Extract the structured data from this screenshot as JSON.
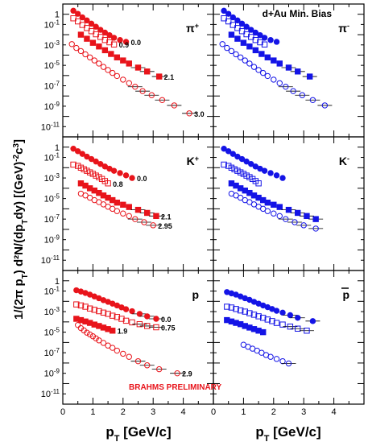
{
  "chart_data": {
    "type": "scatter",
    "title": "d+Au Min. Bias",
    "xlabel": "p_T [GeV/c]",
    "ylabel": "1/(2π p_T) d²N/(dp_T dy) [(GeV)^-2 c^3]",
    "yscale": "log",
    "xlim": [
      0,
      5
    ],
    "ylim": [
      1e-12,
      10
    ],
    "x_ticks": [
      "0",
      "1",
      "2",
      "3",
      "4"
    ],
    "y_ticks": [
      "1",
      "10^-1",
      "10^-3",
      "10^-5",
      "10^-7",
      "10^-9",
      "10^-11"
    ],
    "annotation": "BRAHMS PRELIMINARY",
    "colors": {
      "positive": "#e8141b",
      "negative": "#1414e6"
    },
    "marker_legend": {
      "filled_circle": "y=0.0",
      "open_square": "y=0.8/0.9/0.75",
      "filled_square": "y=1.9/2.1",
      "open_circle": "y=2.9/2.95/3.0"
    },
    "panels": [
      {
        "id": "pi_plus",
        "particle": "π",
        "charge": "+",
        "color": "#e8141b",
        "series": [
          {
            "name": "0.0",
            "marker": "filled_circle",
            "x": [
              0.35,
              0.5,
              0.65,
              0.8,
              0.95,
              1.1,
              1.25,
              1.4,
              1.55,
              1.7,
              1.9,
              2.1
            ],
            "y": [
              2.2,
              1.1,
              0.5,
              0.25,
              0.12,
              0.06,
              0.03,
              0.016,
              0.009,
              0.005,
              0.003,
              0.002
            ]
          },
          {
            "name": "0.9",
            "marker": "open_square",
            "x": [
              0.35,
              0.5,
              0.65,
              0.8,
              0.95,
              1.1,
              1.25,
              1.4,
              1.55,
              1.7
            ],
            "y": [
              0.4,
              0.2,
              0.09,
              0.045,
              0.022,
              0.011,
              0.006,
              0.003,
              0.0018,
              0.0011
            ]
          },
          {
            "name": "2.1",
            "marker": "filled_square",
            "x": [
              0.6,
              0.8,
              1.0,
              1.2,
              1.4,
              1.6,
              1.8,
              2.0,
              2.2,
              2.5,
              2.8,
              3.2
            ],
            "y": [
              0.01,
              0.004,
              0.0016,
              0.0007,
              0.0003,
              0.00013,
              6e-05,
              3e-05,
              1.5e-05,
              6e-06,
              2.5e-06,
              8e-07
            ]
          },
          {
            "name": "3.0",
            "marker": "open_circle",
            "x": [
              0.3,
              0.45,
              0.6,
              0.75,
              0.9,
              1.05,
              1.2,
              1.35,
              1.5,
              1.65,
              1.8,
              2.0,
              2.2,
              2.4,
              2.65,
              2.95,
              3.3,
              3.7,
              4.2
            ],
            "y": [
              0.0012,
              0.0005,
              0.00025,
              0.00012,
              6e-05,
              3e-05,
              1.5e-05,
              7e-06,
              3.5e-06,
              1.8e-06,
              9e-07,
              4e-07,
              1.8e-07,
              8e-08,
              3e-08,
              1.2e-08,
              4e-09,
              1.2e-09,
              2e-10
            ]
          }
        ],
        "labels": [
          "0.0",
          "0.9",
          "2.1",
          "3.0"
        ]
      },
      {
        "id": "pi_minus",
        "particle": "π",
        "charge": "-",
        "color": "#1414e6",
        "series": [
          {
            "name": "0.0",
            "marker": "filled_circle",
            "x": [
              0.35,
              0.5,
              0.65,
              0.8,
              0.95,
              1.1,
              1.25,
              1.4,
              1.55,
              1.7,
              1.9,
              2.1
            ],
            "y": [
              2.2,
              1.1,
              0.5,
              0.25,
              0.12,
              0.06,
              0.03,
              0.016,
              0.009,
              0.005,
              0.003,
              0.002
            ]
          },
          {
            "name": "0.9",
            "marker": "open_square",
            "x": [
              0.35,
              0.5,
              0.65,
              0.8,
              0.95,
              1.1,
              1.25,
              1.4,
              1.55,
              1.7
            ],
            "y": [
              0.4,
              0.2,
              0.09,
              0.045,
              0.022,
              0.011,
              0.006,
              0.003,
              0.0018,
              0.0011
            ]
          },
          {
            "name": "2.1",
            "marker": "filled_square",
            "x": [
              0.6,
              0.8,
              1.0,
              1.2,
              1.4,
              1.6,
              1.8,
              2.0,
              2.2,
              2.5,
              2.8,
              3.2
            ],
            "y": [
              0.01,
              0.004,
              0.0016,
              0.0007,
              0.0003,
              0.00013,
              6e-05,
              3e-05,
              1.5e-05,
              6e-06,
              2.5e-06,
              8e-07
            ]
          },
          {
            "name": "3.0",
            "marker": "open_circle",
            "x": [
              0.3,
              0.45,
              0.6,
              0.75,
              0.9,
              1.05,
              1.2,
              1.35,
              1.5,
              1.65,
              1.8,
              2.0,
              2.2,
              2.4,
              2.65,
              2.95,
              3.3,
              3.7
            ],
            "y": [
              0.0012,
              0.0005,
              0.00025,
              0.00012,
              6e-05,
              3e-05,
              1.5e-05,
              7e-06,
              3.5e-06,
              1.8e-06,
              9e-07,
              4e-07,
              1.8e-07,
              8e-08,
              3e-08,
              1.2e-08,
              4e-09,
              1.2e-09
            ]
          }
        ],
        "labels": []
      },
      {
        "id": "k_plus",
        "particle": "K",
        "charge": "+",
        "color": "#e8141b",
        "series": [
          {
            "name": "0.0",
            "marker": "filled_circle",
            "x": [
              0.35,
              0.5,
              0.65,
              0.8,
              0.95,
              1.1,
              1.25,
              1.4,
              1.55,
              1.7,
              1.9,
              2.1,
              2.3
            ],
            "y": [
              0.7,
              0.4,
              0.22,
              0.12,
              0.07,
              0.04,
              0.023,
              0.013,
              0.008,
              0.005,
              0.003,
              0.0018,
              0.001
            ]
          },
          {
            "name": "0.8",
            "marker": "open_square",
            "x": [
              0.35,
              0.5,
              0.6,
              0.7,
              0.8,
              0.9,
              1.0,
              1.1,
              1.2,
              1.3,
              1.4,
              1.5
            ],
            "y": [
              0.02,
              0.015,
              0.01,
              0.007,
              0.005,
              0.0035,
              0.0025,
              0.0017,
              0.0012,
              0.0008,
              0.0005,
              0.0003
            ]
          },
          {
            "name": "2.1",
            "marker": "filled_square",
            "x": [
              0.6,
              0.75,
              0.9,
              1.05,
              1.2,
              1.35,
              1.5,
              1.65,
              1.8,
              2.0,
              2.2,
              2.5,
              2.8,
              3.1
            ],
            "y": [
              0.0003,
              0.00018,
              0.0001,
              6e-05,
              3.5e-05,
              2e-05,
              1.2e-05,
              7e-06,
              4e-06,
              2.5e-06,
              1.5e-06,
              8e-07,
              4e-07,
              2e-07
            ]
          },
          {
            "name": "2.95",
            "marker": "open_circle",
            "x": [
              0.6,
              0.75,
              0.9,
              1.05,
              1.2,
              1.35,
              1.5,
              1.65,
              1.8,
              2.0,
              2.2,
              2.4,
              2.7,
              3.0
            ],
            "y": [
              3e-05,
              2e-05,
              1.2e-05,
              7e-06,
              4.5e-06,
              2.7e-06,
              1.6e-06,
              1e-06,
              6e-07,
              3.5e-07,
              2e-07,
              1e-07,
              5e-08,
              2.5e-08
            ]
          }
        ],
        "labels": [
          "0.0",
          "0.8",
          "2.1",
          "2.95"
        ]
      },
      {
        "id": "k_minus",
        "particle": "K",
        "charge": "-",
        "color": "#1414e6",
        "series": [
          {
            "name": "0.0",
            "marker": "filled_circle",
            "x": [
              0.35,
              0.5,
              0.65,
              0.8,
              0.95,
              1.1,
              1.25,
              1.4,
              1.55,
              1.7,
              1.9,
              2.1,
              2.3
            ],
            "y": [
              0.7,
              0.4,
              0.22,
              0.12,
              0.07,
              0.04,
              0.023,
              0.013,
              0.008,
              0.005,
              0.003,
              0.0018,
              0.001
            ]
          },
          {
            "name": "0.8",
            "marker": "open_square",
            "x": [
              0.35,
              0.5,
              0.6,
              0.7,
              0.8,
              0.9,
              1.0,
              1.1,
              1.2,
              1.3,
              1.4,
              1.5
            ],
            "y": [
              0.02,
              0.015,
              0.01,
              0.007,
              0.005,
              0.0035,
              0.0025,
              0.0017,
              0.0012,
              0.0008,
              0.0005,
              0.0003
            ]
          },
          {
            "name": "2.1",
            "marker": "filled_square",
            "x": [
              0.6,
              0.75,
              0.9,
              1.05,
              1.2,
              1.35,
              1.5,
              1.65,
              1.8,
              2.0,
              2.2,
              2.5,
              2.8,
              3.1,
              3.4
            ],
            "y": [
              0.0003,
              0.00018,
              0.0001,
              6e-05,
              3.5e-05,
              2e-05,
              1.2e-05,
              7e-06,
              4e-06,
              2.5e-06,
              1.5e-06,
              8e-07,
              4e-07,
              2e-07,
              1e-07
            ]
          },
          {
            "name": "2.95",
            "marker": "open_circle",
            "x": [
              0.6,
              0.75,
              0.9,
              1.05,
              1.2,
              1.35,
              1.5,
              1.65,
              1.8,
              2.0,
              2.2,
              2.4,
              2.7,
              3.0,
              3.4
            ],
            "y": [
              3e-05,
              2e-05,
              1.2e-05,
              7e-06,
              4.5e-06,
              2.7e-06,
              1.6e-06,
              1e-06,
              6e-07,
              3.5e-07,
              2e-07,
              1e-07,
              5e-08,
              2.5e-08,
              1.2e-08
            ]
          }
        ],
        "labels": []
      },
      {
        "id": "p",
        "particle": "p",
        "charge": "",
        "color": "#e8141b",
        "series": [
          {
            "name": "0.0",
            "marker": "filled_circle",
            "x": [
              0.45,
              0.6,
              0.75,
              0.9,
              1.05,
              1.2,
              1.35,
              1.5,
              1.65,
              1.8,
              1.95,
              2.1,
              2.3,
              2.55,
              2.8,
              3.1
            ],
            "y": [
              0.12,
              0.09,
              0.065,
              0.045,
              0.03,
              0.02,
              0.013,
              0.009,
              0.006,
              0.004,
              0.0026,
              0.0017,
              0.0011,
              0.0006,
              0.00035,
              0.0002
            ]
          },
          {
            "name": "0.75",
            "marker": "open_square",
            "x": [
              0.45,
              0.6,
              0.75,
              0.9,
              1.05,
              1.2,
              1.35,
              1.5,
              1.65,
              1.8,
              1.95,
              2.1,
              2.3,
              2.55,
              2.8,
              3.1
            ],
            "y": [
              0.005,
              0.004,
              0.003,
              0.002,
              0.0015,
              0.0011,
              0.0008,
              0.0006,
              0.0004,
              0.0003,
              0.0002,
              0.00013,
              9e-05,
              6e-05,
              4e-05,
              3e-05
            ]
          },
          {
            "name": "1.9",
            "marker": "filled_square",
            "x": [
              0.45,
              0.6,
              0.75,
              0.9,
              1.05,
              1.2,
              1.35,
              1.5,
              1.65
            ],
            "y": [
              0.0002,
              0.00015,
              0.00011,
              8e-05,
              5.5e-05,
              4e-05,
              2.8e-05,
              2e-05,
              1.4e-05
            ]
          },
          {
            "name": "2.9",
            "marker": "open_circle",
            "x": [
              0.5,
              0.6,
              0.7,
              0.8,
              0.9,
              1.0,
              1.1,
              1.2,
              1.35,
              1.5,
              1.65,
              1.8,
              2.0,
              2.2,
              2.5,
              2.8,
              3.2,
              3.8
            ],
            "y": [
              5e-05,
              2.5e-05,
              1.5e-05,
              9e-06,
              6e-06,
              4e-06,
              2.5e-06,
              1.6e-06,
              9e-07,
              5e-07,
              3e-07,
              1.6e-07,
              8e-08,
              4e-08,
              1.5e-08,
              6e-09,
              2.5e-09,
              1e-09
            ]
          }
        ],
        "labels": [
          "0.0",
          "0.75",
          "1.9",
          "2.9"
        ]
      },
      {
        "id": "pbar",
        "particle": "p",
        "charge": "bar",
        "color": "#1414e6",
        "series": [
          {
            "name": "0.0",
            "marker": "filled_circle",
            "x": [
              0.45,
              0.6,
              0.75,
              0.9,
              1.05,
              1.2,
              1.35,
              1.5,
              1.65,
              1.8,
              1.95,
              2.1,
              2.3,
              2.55,
              2.8,
              3.3
            ],
            "y": [
              0.08,
              0.06,
              0.045,
              0.03,
              0.02,
              0.014,
              0.009,
              0.006,
              0.004,
              0.0027,
              0.0018,
              0.0012,
              0.0008,
              0.00045,
              0.00025,
              0.00012
            ]
          },
          {
            "name": "0.75",
            "marker": "open_square",
            "x": [
              0.45,
              0.6,
              0.75,
              0.9,
              1.05,
              1.2,
              1.35,
              1.5,
              1.65,
              1.8,
              1.95,
              2.1,
              2.3,
              2.55,
              2.8,
              3.1
            ],
            "y": [
              0.003,
              0.0025,
              0.0018,
              0.0013,
              0.001,
              0.0007,
              0.0005,
              0.00035,
              0.00025,
              0.00017,
              0.00012,
              8e-05,
              5.5e-05,
              3.5e-05,
              2.2e-05,
              1.4e-05
            ]
          },
          {
            "name": "1.9",
            "marker": "filled_square",
            "x": [
              0.45,
              0.6,
              0.75,
              0.9,
              1.05,
              1.2,
              1.35,
              1.5,
              1.65
            ],
            "y": [
              0.00015,
              0.00011,
              8e-05,
              6e-05,
              4e-05,
              2.8e-05,
              2e-05,
              1.4e-05,
              1e-05
            ]
          },
          {
            "name": "2.9",
            "marker": "open_circle",
            "x": [
              1.0,
              1.15,
              1.3,
              1.45,
              1.6,
              1.75,
              1.9,
              2.1,
              2.3,
              2.5
            ],
            "y": [
              6e-07,
              3.8e-07,
              2.5e-07,
              1.6e-07,
              1e-07,
              6e-08,
              4e-08,
              2.5e-08,
              1.5e-08,
              9e-09
            ]
          }
        ],
        "labels": []
      }
    ]
  }
}
